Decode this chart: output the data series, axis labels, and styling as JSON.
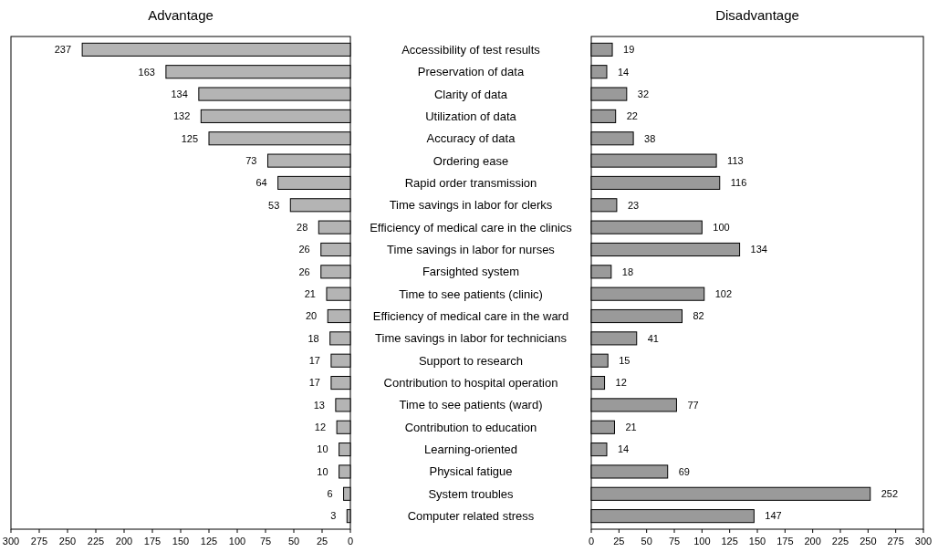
{
  "chart_data": [
    {
      "type": "bar",
      "orientation": "horizontal",
      "title": "Advantage",
      "categories": [
        "Accessibility of test results",
        "Preservation of data",
        "Clarity of data",
        "Utilization of data",
        "Accuracy of data",
        "Ordering ease",
        "Rapid order transmission",
        "Time savings in labor for clerks",
        "Efficiency of medical care in the clinics",
        "Time savings in labor for nurses",
        "Farsighted system",
        "Time to see patients (clinic)",
        "Efficiency of medical care in the ward",
        "Time savings in labor for technicians",
        "Support to research",
        "Contribution to hospital operation",
        "Time to see patients (ward)",
        "Contribution to education",
        "Learning-oriented",
        "Physical fatigue",
        "System troubles",
        "Computer related stress"
      ],
      "values": [
        237,
        163,
        134,
        132,
        125,
        73,
        64,
        53,
        28,
        26,
        26,
        21,
        20,
        18,
        17,
        17,
        13,
        12,
        10,
        10,
        6,
        3
      ],
      "color": "#b4b4b4",
      "data_labels": true,
      "xlim": [
        300,
        0
      ],
      "xticks": [
        300,
        275,
        250,
        225,
        200,
        175,
        150,
        125,
        100,
        75,
        50,
        25,
        0
      ]
    },
    {
      "type": "bar",
      "orientation": "horizontal",
      "title": "Disadvantage",
      "values": [
        19,
        14,
        32,
        22,
        38,
        113,
        116,
        23,
        100,
        134,
        18,
        102,
        82,
        41,
        15,
        12,
        77,
        21,
        14,
        69,
        252,
        147
      ],
      "color": "#9a9a9a",
      "data_labels": true,
      "xlim": [
        0,
        300
      ],
      "xticks": [
        0,
        25,
        50,
        75,
        100,
        125,
        150,
        175,
        200,
        225,
        250,
        275,
        300
      ]
    }
  ]
}
